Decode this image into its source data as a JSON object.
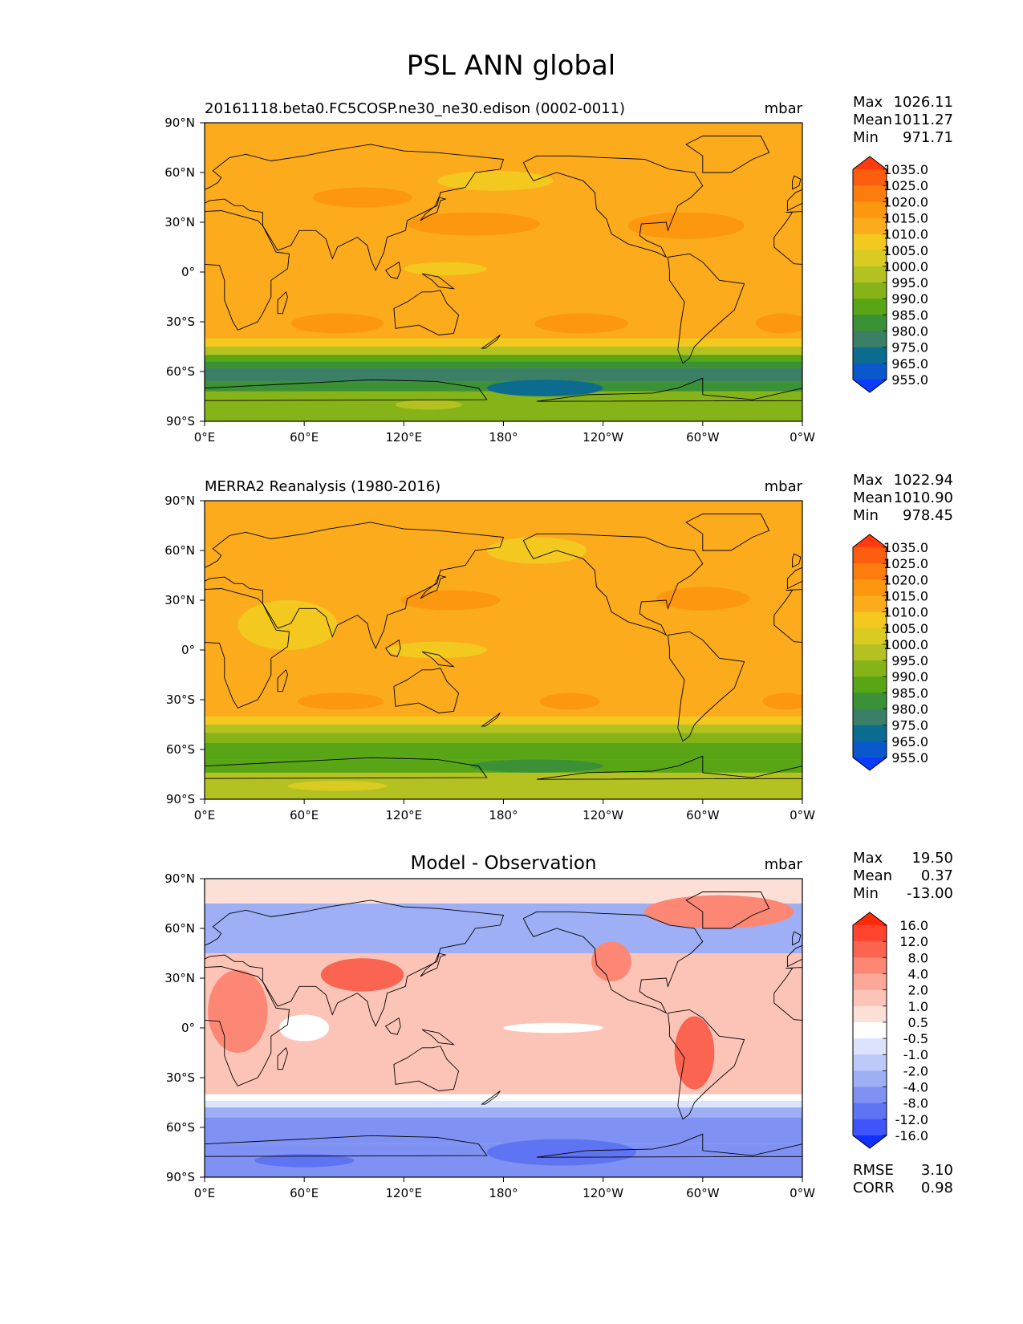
{
  "figure_title": "PSL ANN global",
  "lon_ticks": [
    "0°E",
    "60°E",
    "120°E",
    "180°",
    "120°W",
    "60°W",
    "0°W"
  ],
  "lat_ticks": [
    "90°N",
    "60°N",
    "30°N",
    "0°",
    "30°S",
    "60°S",
    "90°S"
  ],
  "colors": {
    "ocean_base": "#fbab1c",
    "land_outline": "#000000",
    "diff_base": "#fcd3c9"
  },
  "panels": [
    {
      "id": "test",
      "title": "20161118.beta0.FC5COSP.ne30_ne30.edison (0002-0011)",
      "units": "mbar",
      "stats": [
        {
          "label": "Max",
          "value": "1026.11"
        },
        {
          "label": "Mean",
          "value": "1011.27"
        },
        {
          "label": "Min",
          "value": "971.71"
        }
      ],
      "colorbar": {
        "labels": [
          "1035.0",
          "1025.0",
          "1020.0",
          "1015.0",
          "1010.0",
          "1005.0",
          "1000.0",
          "995.0",
          "990.0",
          "985.0",
          "980.0",
          "975.0",
          "965.0",
          "955.0"
        ],
        "colors": [
          "#ff3a0e",
          "#fc5d0e",
          "#fc7d0e",
          "#fc970f",
          "#fbab1c",
          "#f3c81f",
          "#d9cb22",
          "#b3c221",
          "#86b418",
          "#58a615",
          "#3b9135",
          "#3b7f66",
          "#0b6c90",
          "#0a59cc",
          "#0a3bff"
        ]
      },
      "bands": [
        {
          "lat": [
            90,
            45
          ],
          "color": "#fbab1c"
        },
        {
          "lat": [
            45,
            -40
          ],
          "color": "#fbab1c"
        },
        {
          "lat": [
            -40,
            -45
          ],
          "color": "#f3c81f"
        },
        {
          "lat": [
            -45,
            -50
          ],
          "color": "#b3c221"
        },
        {
          "lat": [
            -50,
            -54
          ],
          "color": "#58a615"
        },
        {
          "lat": [
            -54,
            -58
          ],
          "color": "#3b9135"
        },
        {
          "lat": [
            -58,
            -66
          ],
          "color": "#3b7f66"
        },
        {
          "lat": [
            -66,
            -72
          ],
          "color": "#3b9135"
        },
        {
          "lat": [
            -72,
            -90
          ],
          "color": "#86b418"
        }
      ],
      "blobs": [
        {
          "lon": 162,
          "lat": 29,
          "rlon": 40,
          "rlat": 7,
          "color": "#fc970f"
        },
        {
          "lon": 290,
          "lat": 28,
          "rlon": 35,
          "rlat": 8,
          "color": "#fc970f"
        },
        {
          "lon": 80,
          "lat": -31,
          "rlon": 28,
          "rlat": 6,
          "color": "#fc970f"
        },
        {
          "lon": 227,
          "lat": -31,
          "rlon": 28,
          "rlat": 6,
          "color": "#fc970f"
        },
        {
          "lon": 348,
          "lat": -31,
          "rlon": 16,
          "rlat": 6,
          "color": "#fc970f"
        },
        {
          "lon": 95,
          "lat": 45,
          "rlon": 30,
          "rlat": 6,
          "color": "#fc970f"
        },
        {
          "lon": 175,
          "lat": 55,
          "rlon": 35,
          "rlat": 6,
          "color": "#f3c81f"
        },
        {
          "lon": 145,
          "lat": 2,
          "rlon": 25,
          "rlat": 4,
          "color": "#f3c81f"
        },
        {
          "lon": 205,
          "lat": -70,
          "rlon": 35,
          "rlat": 5,
          "color": "#0b6c90"
        },
        {
          "lon": 135,
          "lat": -80,
          "rlon": 20,
          "rlat": 3,
          "color": "#b3c221"
        }
      ]
    },
    {
      "id": "reference",
      "title": "MERRA2 Reanalysis (1980-2016)",
      "units": "mbar",
      "stats": [
        {
          "label": "Max",
          "value": "1022.94"
        },
        {
          "label": "Mean",
          "value": "1010.90"
        },
        {
          "label": "Min",
          "value": "978.45"
        }
      ],
      "colorbar": {
        "labels": [
          "1035.0",
          "1025.0",
          "1020.0",
          "1015.0",
          "1010.0",
          "1005.0",
          "1000.0",
          "995.0",
          "990.0",
          "985.0",
          "980.0",
          "975.0",
          "965.0",
          "955.0"
        ],
        "colors": [
          "#ff3a0e",
          "#fc5d0e",
          "#fc7d0e",
          "#fc970f",
          "#fbab1c",
          "#f3c81f",
          "#d9cb22",
          "#b3c221",
          "#86b418",
          "#58a615",
          "#3b9135",
          "#3b7f66",
          "#0b6c90",
          "#0a59cc",
          "#0a3bff"
        ]
      },
      "bands": [
        {
          "lat": [
            90,
            -40
          ],
          "color": "#fbab1c"
        },
        {
          "lat": [
            -40,
            -45
          ],
          "color": "#f3c81f"
        },
        {
          "lat": [
            -45,
            -50
          ],
          "color": "#b3c221"
        },
        {
          "lat": [
            -50,
            -56
          ],
          "color": "#86b418"
        },
        {
          "lat": [
            -56,
            -66
          ],
          "color": "#58a615"
        },
        {
          "lat": [
            -66,
            -74
          ],
          "color": "#58a615"
        },
        {
          "lat": [
            -74,
            -90
          ],
          "color": "#b3c221"
        }
      ],
      "blobs": [
        {
          "lon": 148,
          "lat": 30,
          "rlon": 30,
          "rlat": 6,
          "color": "#fc970f"
        },
        {
          "lon": 300,
          "lat": 31,
          "rlon": 28,
          "rlat": 7,
          "color": "#fc970f"
        },
        {
          "lon": 82,
          "lat": -31,
          "rlon": 26,
          "rlat": 5,
          "color": "#fc970f"
        },
        {
          "lon": 220,
          "lat": -31,
          "rlon": 18,
          "rlat": 5,
          "color": "#fc970f"
        },
        {
          "lon": 350,
          "lat": -31,
          "rlon": 14,
          "rlat": 5,
          "color": "#fc970f"
        },
        {
          "lon": 50,
          "lat": 15,
          "rlon": 30,
          "rlat": 15,
          "color": "#f3c81f"
        },
        {
          "lon": 140,
          "lat": 0,
          "rlon": 30,
          "rlat": 5,
          "color": "#f3c81f"
        },
        {
          "lon": 200,
          "lat": 60,
          "rlon": 30,
          "rlat": 8,
          "color": "#f3c81f"
        },
        {
          "lon": 200,
          "lat": -70,
          "rlon": 40,
          "rlat": 4,
          "color": "#3b9135"
        },
        {
          "lon": 80,
          "lat": -82,
          "rlon": 30,
          "rlat": 3,
          "color": "#d9cb22"
        }
      ]
    },
    {
      "id": "diff",
      "title": "Model - Observation",
      "units": "mbar",
      "stats": [
        {
          "label": "Max",
          "value": "19.50"
        },
        {
          "label": "Mean",
          "value": "0.37"
        },
        {
          "label": "Min",
          "value": "-13.00"
        }
      ],
      "extra_stats": [
        {
          "label": "RMSE",
          "value": "3.10"
        },
        {
          "label": "CORR",
          "value": "0.98"
        }
      ],
      "colorbar": {
        "labels": [
          "16.0",
          "12.0",
          "8.0",
          "4.0",
          "2.0",
          "1.0",
          "0.5",
          "-0.5",
          "-1.0",
          "-2.0",
          "-4.0",
          "-8.0",
          "-12.0",
          "-16.0"
        ],
        "colors": [
          "#ff2a0a",
          "#ff452f",
          "#fc6452",
          "#fc8775",
          "#fba898",
          "#fcc4b7",
          "#fcdfd7",
          "#ffffff",
          "#dbe4fc",
          "#bccaf9",
          "#9eaff5",
          "#7f92f3",
          "#5f74f3",
          "#3f55fb",
          "#1030ff"
        ]
      },
      "bands": [
        {
          "lat": [
            90,
            75
          ],
          "color": "#fcdfd7"
        },
        {
          "lat": [
            75,
            45
          ],
          "color": "#9eaff5"
        },
        {
          "lat": [
            45,
            -40
          ],
          "color": "#fcc4b7"
        },
        {
          "lat": [
            -40,
            -44
          ],
          "color": "#ffffff"
        },
        {
          "lat": [
            -44,
            -48
          ],
          "color": "#dbe4fc"
        },
        {
          "lat": [
            -48,
            -54
          ],
          "color": "#9eaff5"
        },
        {
          "lat": [
            -54,
            -70
          ],
          "color": "#7f92f3"
        },
        {
          "lat": [
            -70,
            -90
          ],
          "color": "#7f92f3"
        }
      ],
      "blobs": [
        {
          "lon": 310,
          "lat": 70,
          "rlon": 45,
          "rlat": 10,
          "color": "#fc8775"
        },
        {
          "lon": 95,
          "lat": 32,
          "rlon": 25,
          "rlat": 10,
          "color": "#fc6452"
        },
        {
          "lon": 20,
          "lat": 10,
          "rlon": 18,
          "rlat": 25,
          "color": "#fc8775"
        },
        {
          "lon": 60,
          "lat": 0,
          "rlon": 15,
          "rlat": 8,
          "color": "#ffffff"
        },
        {
          "lon": 210,
          "lat": 0,
          "rlon": 30,
          "rlat": 3,
          "color": "#ffffff"
        },
        {
          "lon": 295,
          "lat": -15,
          "rlon": 12,
          "rlat": 22,
          "color": "#fc6452"
        },
        {
          "lon": 245,
          "lat": 40,
          "rlon": 12,
          "rlat": 12,
          "color": "#fc8775"
        },
        {
          "lon": 215,
          "lat": -75,
          "rlon": 45,
          "rlat": 8,
          "color": "#5f74f3"
        },
        {
          "lon": 60,
          "lat": -80,
          "rlon": 30,
          "rlat": 4,
          "color": "#5f74f3"
        }
      ]
    }
  ]
}
